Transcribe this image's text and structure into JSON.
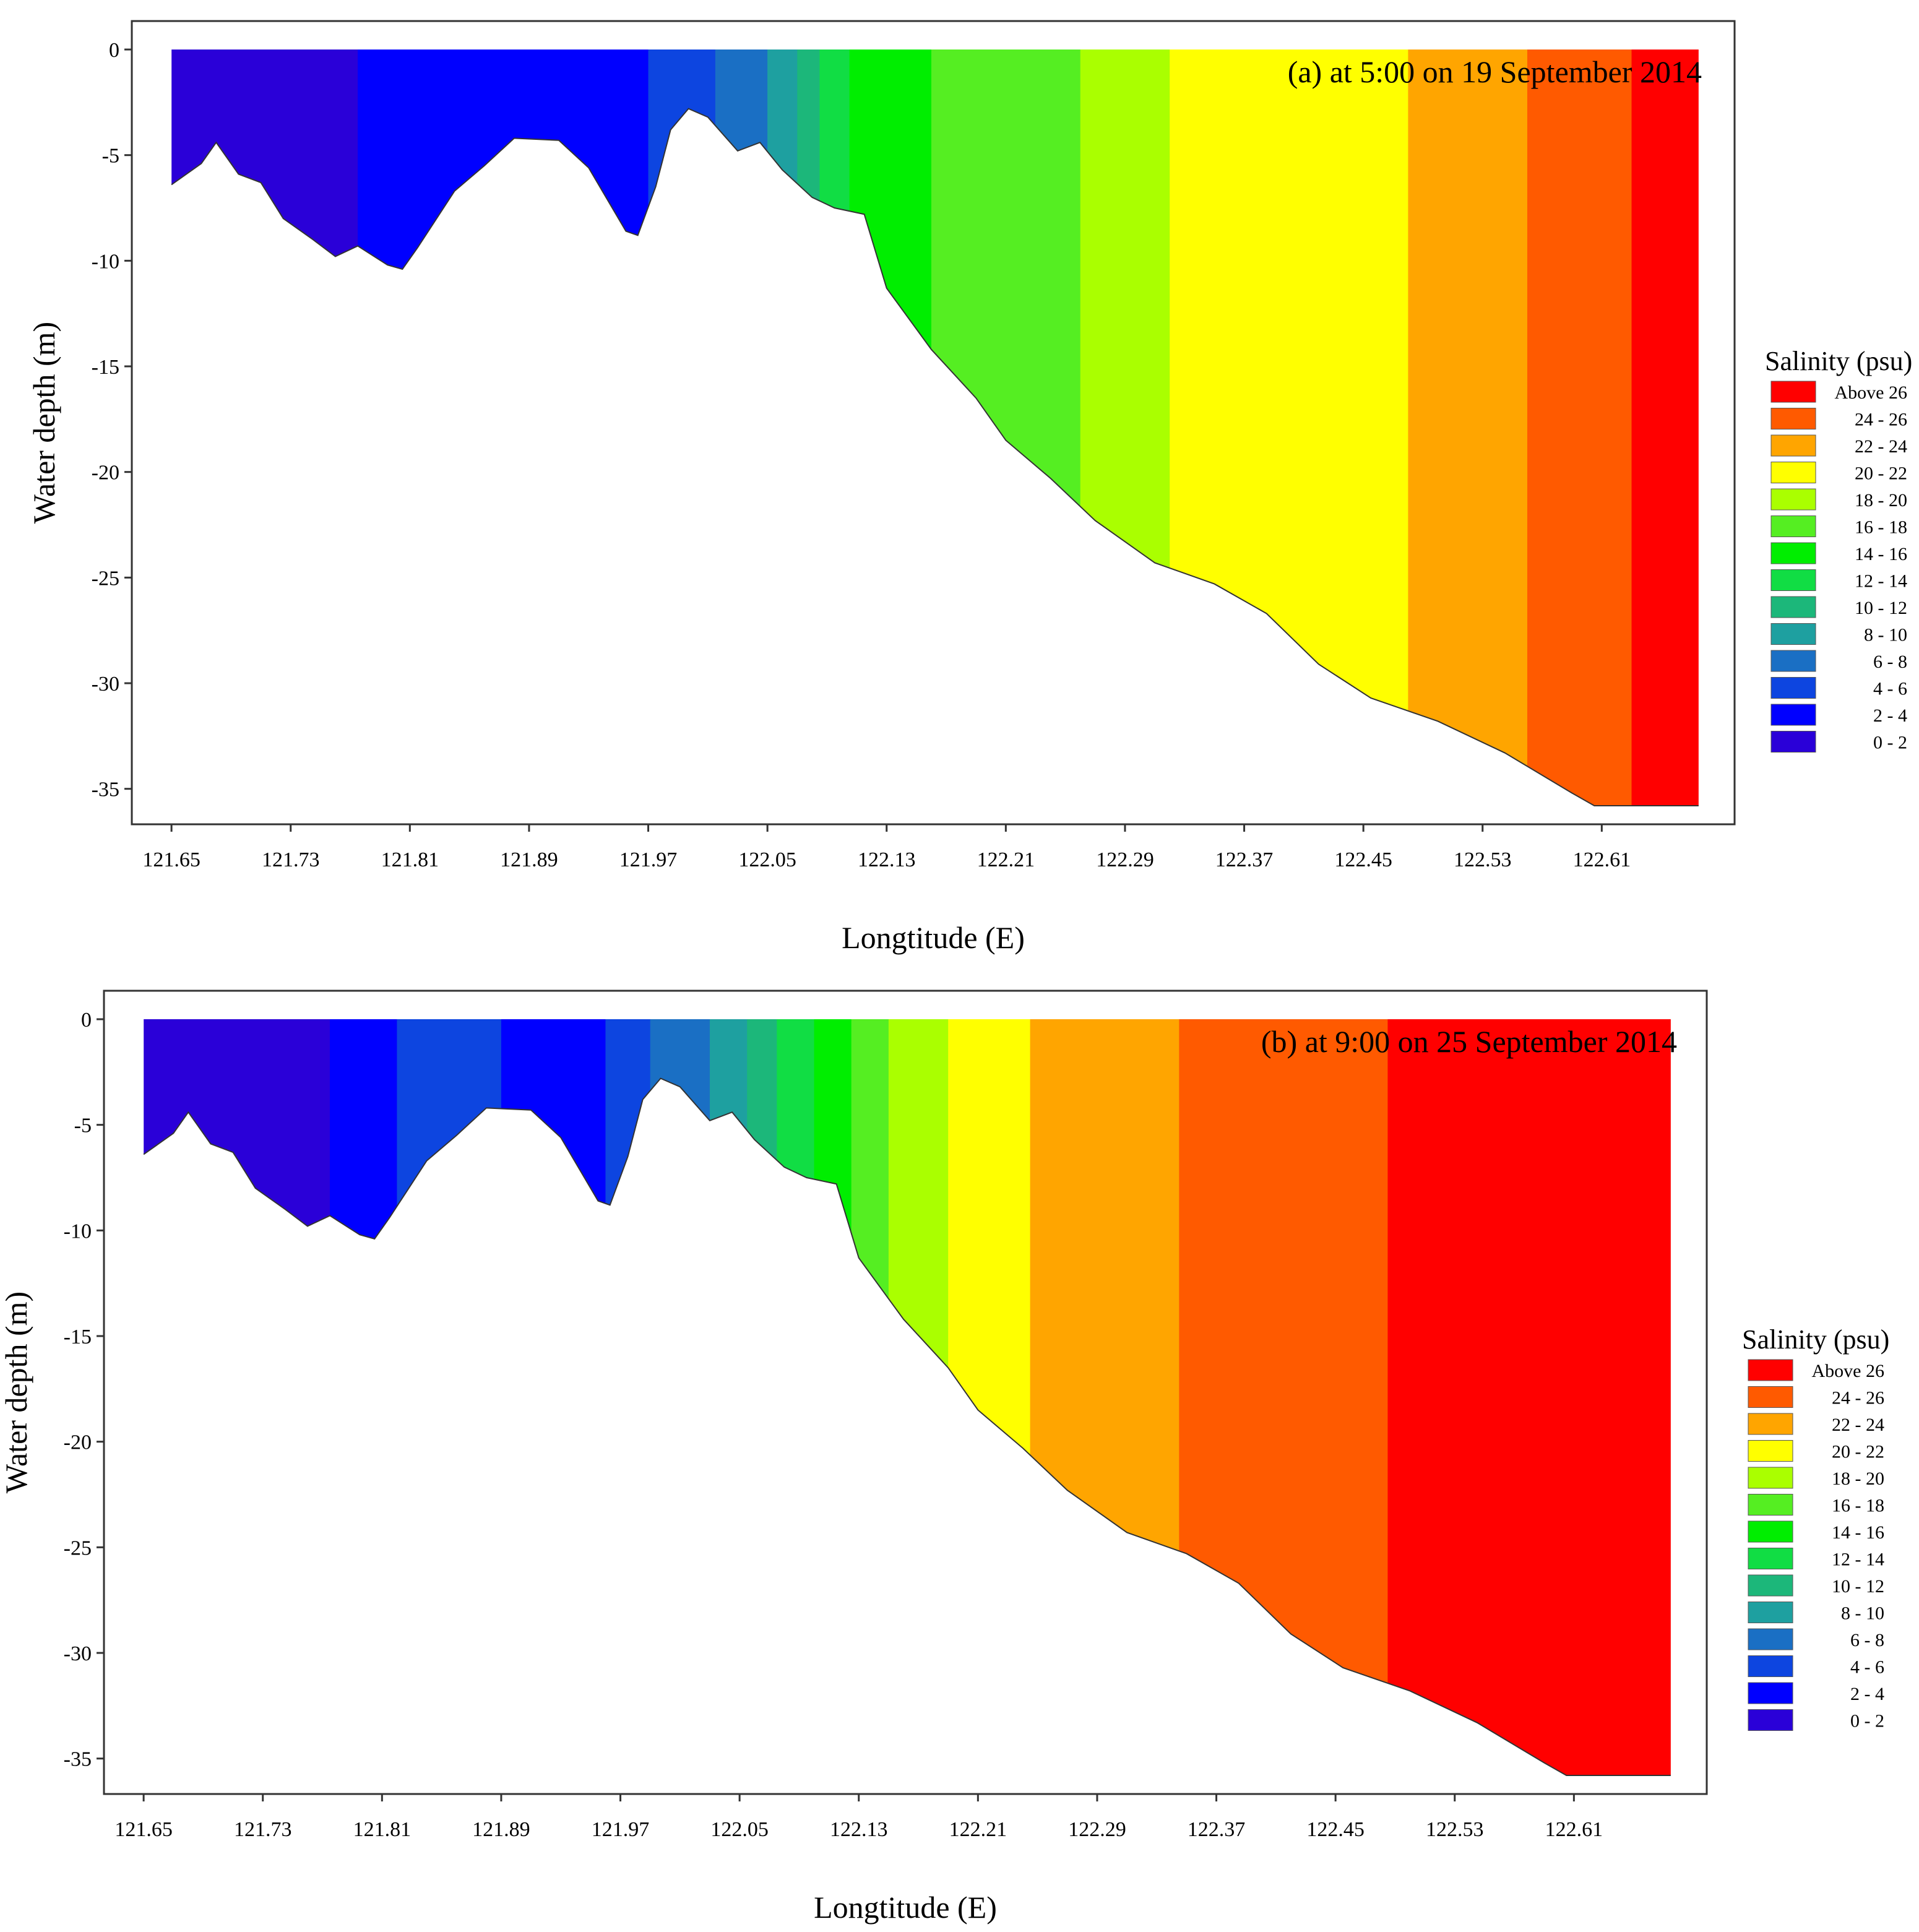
{
  "chart_data": [
    {
      "type": "heatmap",
      "subtype": "filled-contour vertical section",
      "title": "(a) at 5:00 on 19 September 2014",
      "xlabel": "Longtitude (E)",
      "ylabel": "Water depth (m)",
      "xlim": [
        121.635,
        122.695
      ],
      "ylim": [
        -35.8,
        0
      ],
      "x_ticks": [
        121.65,
        121.73,
        121.81,
        121.89,
        121.97,
        122.05,
        122.13,
        122.21,
        122.29,
        122.37,
        122.45,
        122.53,
        122.61
      ],
      "x_tick_labels": [
        "121.65",
        "121.73",
        "121.81",
        "121.89",
        "121.97",
        "122.05",
        "122.13",
        "122.21",
        "122.29",
        "122.37",
        "122.45",
        "122.53",
        "122.61"
      ],
      "y_ticks": [
        0,
        -5,
        -10,
        -15,
        -20,
        -25,
        -30,
        -35
      ],
      "y_tick_labels": [
        "0",
        "-5",
        "-10",
        "-15",
        "-20",
        "-25",
        "-30",
        "-35"
      ],
      "legend": {
        "title": "Salinity (psu)",
        "position": "right",
        "classes": [
          {
            "label": "Above 26",
            "color": "#FF0000"
          },
          {
            "label": "24 - 26",
            "color": "#FF5A00"
          },
          {
            "label": "22 - 24",
            "color": "#FFA500"
          },
          {
            "label": "20 - 22",
            "color": "#FFFF00"
          },
          {
            "label": "18 - 20",
            "color": "#AAFF00"
          },
          {
            "label": "16 - 18",
            "color": "#55EE22"
          },
          {
            "label": "14 - 16",
            "color": "#00EE00"
          },
          {
            "label": "12 - 14",
            "color": "#11DD44"
          },
          {
            "label": "10 - 12",
            "color": "#1CB77A"
          },
          {
            "label": "8 - 10",
            "color": "#1EA0A0"
          },
          {
            "label": "6 - 8",
            "color": "#1A6FC4"
          },
          {
            "label": "4 - 6",
            "color": "#0D45E0"
          },
          {
            "label": "2 - 4",
            "color": "#0000FF"
          },
          {
            "label": "0 - 2",
            "color": "#2A00D8"
          }
        ]
      },
      "bathymetry": [
        [
          121.65,
          -6.4
        ],
        [
          121.67,
          -5.4
        ],
        [
          121.68,
          -4.4
        ],
        [
          121.695,
          -5.9
        ],
        [
          121.71,
          -6.3
        ],
        [
          121.725,
          -8.0
        ],
        [
          121.745,
          -9.0
        ],
        [
          121.76,
          -9.8
        ],
        [
          121.775,
          -9.3
        ],
        [
          121.795,
          -10.2
        ],
        [
          121.805,
          -10.4
        ],
        [
          121.815,
          -9.4
        ],
        [
          121.84,
          -6.7
        ],
        [
          121.86,
          -5.5
        ],
        [
          121.88,
          -4.2
        ],
        [
          121.91,
          -4.3
        ],
        [
          121.93,
          -5.6
        ],
        [
          121.955,
          -8.6
        ],
        [
          121.963,
          -8.8
        ],
        [
          121.975,
          -6.5
        ],
        [
          121.985,
          -3.8
        ],
        [
          121.997,
          -2.8
        ],
        [
          122.01,
          -3.2
        ],
        [
          122.03,
          -4.8
        ],
        [
          122.045,
          -4.4
        ],
        [
          122.06,
          -5.7
        ],
        [
          122.08,
          -7.0
        ],
        [
          122.095,
          -7.5
        ],
        [
          122.115,
          -7.8
        ],
        [
          122.13,
          -11.3
        ],
        [
          122.16,
          -14.2
        ],
        [
          122.19,
          -16.5
        ],
        [
          122.21,
          -18.5
        ],
        [
          122.24,
          -20.3
        ],
        [
          122.27,
          -22.3
        ],
        [
          122.31,
          -24.3
        ],
        [
          122.35,
          -25.3
        ],
        [
          122.385,
          -26.7
        ],
        [
          122.42,
          -29.1
        ],
        [
          122.455,
          -30.7
        ],
        [
          122.5,
          -31.8
        ],
        [
          122.545,
          -33.3
        ],
        [
          122.59,
          -35.2
        ],
        [
          122.605,
          -35.8
        ],
        [
          122.675,
          -35.8
        ]
      ],
      "zones": [
        {
          "class": "0 - 2",
          "x_from": 121.65,
          "x_to": 121.775
        },
        {
          "class": "2 - 4",
          "x_from": 121.775,
          "x_to": 121.97
        },
        {
          "class": "4 - 6",
          "x_from": 121.97,
          "x_to": 122.015
        },
        {
          "class": "6 - 8",
          "x_from": 122.015,
          "x_to": 122.05
        },
        {
          "class": "8 - 10",
          "x_from": 122.05,
          "x_to": 122.07
        },
        {
          "class": "10 - 12",
          "x_from": 122.07,
          "x_to": 122.085
        },
        {
          "class": "12 - 14",
          "x_from": 122.085,
          "x_to": 122.105
        },
        {
          "class": "14 - 16",
          "x_from": 122.105,
          "x_to": 122.16
        },
        {
          "class": "16 - 18",
          "x_from": 122.16,
          "x_to": 122.26
        },
        {
          "class": "18 - 20",
          "x_from": 122.26,
          "x_to": 122.32
        },
        {
          "class": "20 - 22",
          "x_from": 122.32,
          "x_to": 122.48
        },
        {
          "class": "22 - 24",
          "x_from": 122.48,
          "x_to": 122.56
        },
        {
          "class": "24 - 26",
          "x_from": 122.56,
          "x_to": 122.63
        },
        {
          "class": "Above 26",
          "x_from": 122.63,
          "x_to": 122.675
        }
      ]
    },
    {
      "type": "heatmap",
      "subtype": "filled-contour vertical section",
      "title": "(b) at 9:00 on 25 September 2014",
      "xlabel": "Longtitude (E)",
      "ylabel": "Water depth (m)",
      "xlim": [
        121.635,
        122.695
      ],
      "ylim": [
        -35.8,
        0
      ],
      "x_ticks": [
        121.65,
        121.73,
        121.81,
        121.89,
        121.97,
        122.05,
        122.13,
        122.21,
        122.29,
        122.37,
        122.45,
        122.53,
        122.61
      ],
      "x_tick_labels": [
        "121.65",
        "121.73",
        "121.81",
        "121.89",
        "121.97",
        "122.05",
        "122.13",
        "122.21",
        "122.29",
        "122.37",
        "122.45",
        "122.53",
        "122.61"
      ],
      "y_ticks": [
        0,
        -5,
        -10,
        -15,
        -20,
        -25,
        -30,
        -35
      ],
      "y_tick_labels": [
        "0",
        "-5",
        "-10",
        "-15",
        "-20",
        "-25",
        "-30",
        "-35"
      ],
      "legend": {
        "title": "Salinity (psu)",
        "position": "right",
        "classes": [
          {
            "label": "Above 26",
            "color": "#FF0000"
          },
          {
            "label": "24 - 26",
            "color": "#FF5A00"
          },
          {
            "label": "22 - 24",
            "color": "#FFA500"
          },
          {
            "label": "20 - 22",
            "color": "#FFFF00"
          },
          {
            "label": "18 - 20",
            "color": "#AAFF00"
          },
          {
            "label": "16 - 18",
            "color": "#55EE22"
          },
          {
            "label": "14 - 16",
            "color": "#00EE00"
          },
          {
            "label": "12 - 14",
            "color": "#11DD44"
          },
          {
            "label": "10 - 12",
            "color": "#1CB77A"
          },
          {
            "label": "8 - 10",
            "color": "#1EA0A0"
          },
          {
            "label": "6 - 8",
            "color": "#1A6FC4"
          },
          {
            "label": "4 - 6",
            "color": "#0D45E0"
          },
          {
            "label": "2 - 4",
            "color": "#0000FF"
          },
          {
            "label": "0 - 2",
            "color": "#2A00D8"
          }
        ]
      },
      "bathymetry": [
        [
          121.65,
          -6.4
        ],
        [
          121.67,
          -5.4
        ],
        [
          121.68,
          -4.4
        ],
        [
          121.695,
          -5.9
        ],
        [
          121.71,
          -6.3
        ],
        [
          121.725,
          -8.0
        ],
        [
          121.745,
          -9.0
        ],
        [
          121.76,
          -9.8
        ],
        [
          121.775,
          -9.3
        ],
        [
          121.795,
          -10.2
        ],
        [
          121.805,
          -10.4
        ],
        [
          121.815,
          -9.4
        ],
        [
          121.84,
          -6.7
        ],
        [
          121.86,
          -5.5
        ],
        [
          121.88,
          -4.2
        ],
        [
          121.91,
          -4.3
        ],
        [
          121.93,
          -5.6
        ],
        [
          121.955,
          -8.6
        ],
        [
          121.963,
          -8.8
        ],
        [
          121.975,
          -6.5
        ],
        [
          121.985,
          -3.8
        ],
        [
          121.997,
          -2.8
        ],
        [
          122.01,
          -3.2
        ],
        [
          122.03,
          -4.8
        ],
        [
          122.045,
          -4.4
        ],
        [
          122.06,
          -5.7
        ],
        [
          122.08,
          -7.0
        ],
        [
          122.095,
          -7.5
        ],
        [
          122.115,
          -7.8
        ],
        [
          122.13,
          -11.3
        ],
        [
          122.16,
          -14.2
        ],
        [
          122.19,
          -16.5
        ],
        [
          122.21,
          -18.5
        ],
        [
          122.24,
          -20.3
        ],
        [
          122.27,
          -22.3
        ],
        [
          122.31,
          -24.3
        ],
        [
          122.35,
          -25.3
        ],
        [
          122.385,
          -26.7
        ],
        [
          122.42,
          -29.1
        ],
        [
          122.455,
          -30.7
        ],
        [
          122.5,
          -31.8
        ],
        [
          122.545,
          -33.3
        ],
        [
          122.59,
          -35.2
        ],
        [
          122.605,
          -35.8
        ],
        [
          122.675,
          -35.8
        ]
      ],
      "zones": [
        {
          "class": "0 - 2",
          "x_from": 121.65,
          "x_to": 121.775
        },
        {
          "class": "2 - 4",
          "x_from": 121.775,
          "x_to": 121.82
        },
        {
          "class": "4 - 6",
          "x_from": 121.82,
          "x_to": 121.89
        },
        {
          "class": "2 - 4",
          "x_from": 121.89,
          "x_to": 121.96
        },
        {
          "class": "4 - 6",
          "x_from": 121.96,
          "x_to": 121.99
        },
        {
          "class": "6 - 8",
          "x_from": 121.99,
          "x_to": 122.03
        },
        {
          "class": "8 - 10",
          "x_from": 122.03,
          "x_to": 122.055
        },
        {
          "class": "10 - 12",
          "x_from": 122.055,
          "x_to": 122.075
        },
        {
          "class": "12 - 14",
          "x_from": 122.075,
          "x_to": 122.1
        },
        {
          "class": "14 - 16",
          "x_from": 122.1,
          "x_to": 122.125
        },
        {
          "class": "16 - 18",
          "x_from": 122.125,
          "x_to": 122.15
        },
        {
          "class": "18 - 20",
          "x_from": 122.15,
          "x_to": 122.19
        },
        {
          "class": "20 - 22",
          "x_from": 122.19,
          "x_to": 122.245
        },
        {
          "class": "22 - 24",
          "x_from": 122.245,
          "x_to": 122.345
        },
        {
          "class": "24 - 26",
          "x_from": 122.345,
          "x_to": 122.485
        },
        {
          "class": "Above 26",
          "x_from": 122.485,
          "x_to": 122.675
        }
      ]
    }
  ]
}
